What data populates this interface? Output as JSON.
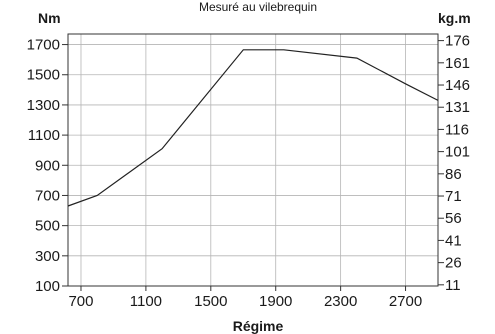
{
  "chart_data": {
    "type": "line",
    "title": "Mesuré au vilebrequin",
    "xlabel": "Régime",
    "ylabel_left": "Nm",
    "ylabel_right": "kg.m",
    "xlim": [
      620,
      2900
    ],
    "ylim": [
      100,
      1770
    ],
    "xticks": [
      700,
      1100,
      1500,
      1900,
      2300,
      2700
    ],
    "yticks_left": [
      100,
      300,
      500,
      700,
      900,
      1100,
      1300,
      1500,
      1700
    ],
    "yticks_right": [
      "11",
      "26",
      "41",
      "56",
      "71",
      "86",
      "101",
      "116",
      "131",
      "146",
      "161",
      "176"
    ],
    "yticks_right_values": [
      107.8,
      254.9,
      402.1,
      549.2,
      696.3,
      843.4,
      990.6,
      1137.7,
      1284.8,
      1431.9,
      1579.1,
      1726.2
    ],
    "grid": true,
    "series": [
      {
        "x": [
          620,
          800,
          1200,
          1700,
          1950,
          2400,
          2700,
          2900
        ],
        "values": [
          630,
          700,
          1010,
          1665,
          1665,
          1610,
          1440,
          1330
        ]
      }
    ]
  }
}
